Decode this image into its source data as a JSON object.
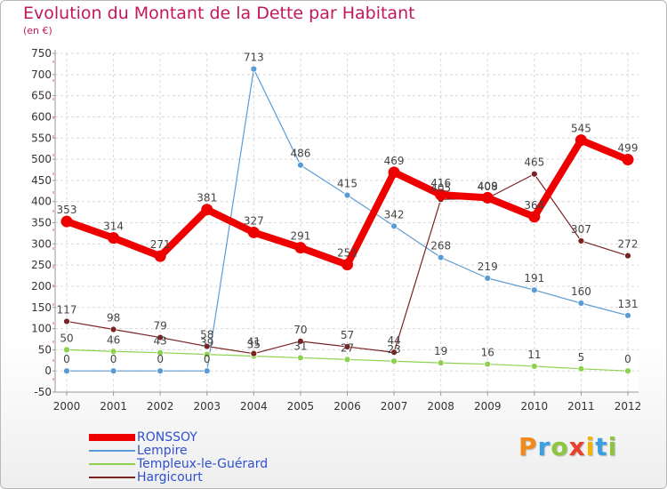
{
  "title": "Evolution du Montant de la Dette par Habitant",
  "subtitle": "(en €)",
  "logo": {
    "text": "Proxiti",
    "letters": [
      {
        "ch": "P",
        "color": "#f08a1c"
      },
      {
        "ch": "r",
        "color": "#3aa0e0"
      },
      {
        "ch": "o",
        "color": "#8cc63f"
      },
      {
        "ch": "x",
        "color": "#e8402a"
      },
      {
        "ch": "i",
        "color": "#f5b400"
      },
      {
        "ch": "t",
        "color": "#3aa0e0"
      },
      {
        "ch": "i",
        "color": "#8cc63f"
      }
    ]
  },
  "chart_data": {
    "type": "line",
    "x": [
      "2000",
      "2001",
      "2002",
      "2003",
      "2004",
      "2005",
      "2006",
      "2007",
      "2008",
      "2009",
      "2010",
      "2011",
      "2012"
    ],
    "ylim": [
      -50,
      750
    ],
    "yticks": [
      -50,
      0,
      50,
      100,
      150,
      200,
      250,
      300,
      350,
      400,
      450,
      500,
      550,
      600,
      650,
      700,
      750
    ],
    "grid": true,
    "legend_position": "bottom-left",
    "series": [
      {
        "name": "RONSSOY",
        "color": "#ee0000",
        "values": [
          353,
          314,
          271,
          381,
          327,
          291,
          251,
          469,
          416,
          409,
          364,
          545,
          499
        ],
        "labels": [
          "353",
          "314",
          "271",
          "381",
          "327",
          "291",
          "251",
          "469",
          "416",
          "409",
          "364",
          "545",
          "499"
        ]
      },
      {
        "name": "Lempire",
        "color": "#5b9bd5",
        "values": [
          0,
          0,
          0,
          0,
          713,
          486,
          415,
          342,
          268,
          219,
          191,
          160,
          131
        ],
        "labels": [
          "0",
          "0",
          "0",
          "0",
          "713",
          "486",
          "415",
          "342",
          "268",
          "219",
          "191",
          "160",
          "131"
        ]
      },
      {
        "name": "Templeux-le-Guérard",
        "color": "#8ed14f",
        "values": [
          50,
          46,
          43,
          39,
          35,
          31,
          27,
          23,
          19,
          16,
          11,
          5,
          0
        ],
        "labels": [
          "50",
          "46",
          "43",
          "39",
          "35",
          "31",
          "27",
          "23",
          "19",
          "16",
          "11",
          "5",
          "0"
        ]
      },
      {
        "name": "Hargicourt",
        "color": "#7a2323",
        "values": [
          117,
          98,
          79,
          58,
          41,
          70,
          57,
          44,
          405,
          408,
          465,
          307,
          272
        ],
        "labels": [
          "117",
          "98",
          "79",
          "58",
          "41",
          "70",
          "57",
          "44",
          "405",
          "408",
          "465",
          "307",
          "272"
        ]
      }
    ]
  }
}
